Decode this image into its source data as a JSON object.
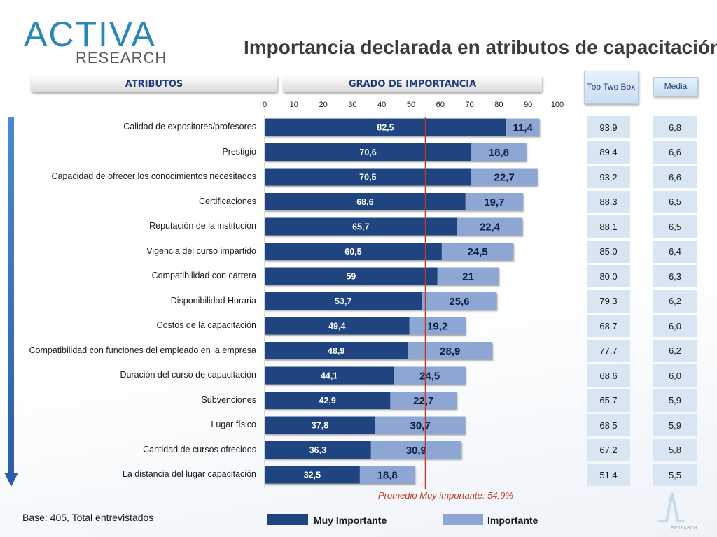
{
  "logo": {
    "main": "ACTIVA",
    "sub": "RESEARCH",
    "watermark_text": "RESEARCH"
  },
  "title": "Importancia declarada en atributos de capacitación",
  "headers": {
    "atributos": "ATRIBUTOS",
    "grado": "GRADO DE IMPORTANCIA",
    "top_two_box": "Top Two Box",
    "media": "Media"
  },
  "colors": {
    "muy_importante": "#1f4480",
    "importante": "#8da6d3",
    "average_line": "#c0392b",
    "cell_bg": "#d8e5f3",
    "average_text": "#c0392b"
  },
  "chart_data": {
    "type": "bar",
    "orientation": "horizontal",
    "stacked": true,
    "xlim": [
      0,
      100
    ],
    "xticks": [
      0,
      10,
      20,
      30,
      40,
      50,
      60,
      70,
      80,
      90,
      100
    ],
    "categories": [
      "Calidad de expositores/profesores",
      "Prestigio",
      "Capacidad de ofrecer los conocimientos necesitados",
      "Certificaciones",
      "Reputación de la institución",
      "Vigencia del curso impartido",
      "Compatibilidad con carrera",
      "Disponibilidad Horaria",
      "Costos de la capacitación",
      "Compatibilidad con funciones del empleado en la empresa",
      "Duración del curso de capacitación",
      "Subvenciones",
      "Lugar físico",
      "Cantidad de cursos ofrecidos",
      "La distancia del lugar capacitación"
    ],
    "series": [
      {
        "name": "Muy Importante",
        "values": [
          82.5,
          70.6,
          70.5,
          68.6,
          65.7,
          60.5,
          59,
          53.7,
          49.4,
          48.9,
          44.1,
          42.9,
          37.8,
          36.3,
          32.5
        ],
        "labels": [
          "82,5",
          "70,6",
          "70,5",
          "68,6",
          "65,7",
          "60,5",
          "59",
          "53,7",
          "49,4",
          "48,9",
          "44,1",
          "42,9",
          "37,8",
          "36,3",
          "32,5"
        ]
      },
      {
        "name": "Importante",
        "values": [
          11.4,
          18.8,
          22.7,
          19.7,
          22.4,
          24.5,
          21,
          25.6,
          19.2,
          28.9,
          24.5,
          22.7,
          30.7,
          30.9,
          18.8
        ],
        "labels": [
          "11,4",
          "18,8",
          "22,7",
          "19,7",
          "22,4",
          "24,5",
          "21",
          "25,6",
          "19,2",
          "28,9",
          "24,5",
          "22,7",
          "30,7",
          "30,9",
          "18,8"
        ]
      }
    ],
    "reference_line": {
      "value": 54.9,
      "label": "Promedio Muy importante: 54,9%"
    },
    "legend": [
      "Muy Importante",
      "Importante"
    ],
    "legend_position": "bottom"
  },
  "top_two_box": [
    "93,9",
    "89,4",
    "93,2",
    "88,3",
    "88,1",
    "85,0",
    "80,0",
    "79,3",
    "68,7",
    "77,7",
    "68,6",
    "65,7",
    "68,5",
    "67,2",
    "51,4"
  ],
  "media": [
    "6,8",
    "6,6",
    "6,6",
    "6,5",
    "6,5",
    "6,4",
    "6,3",
    "6,2",
    "6,0",
    "6,2",
    "6,0",
    "5,9",
    "5,9",
    "5,8",
    "5,5"
  ],
  "footer": {
    "base": "Base: 405, Total entrevistados"
  }
}
